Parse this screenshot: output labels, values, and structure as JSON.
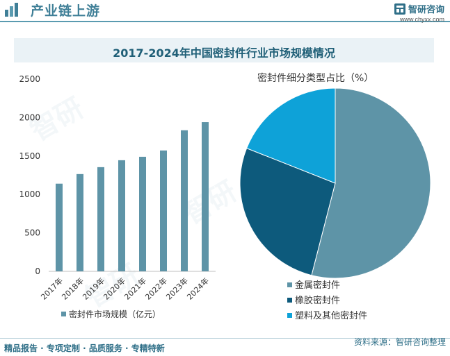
{
  "header": {
    "title": "产业链上游",
    "brand_name": "智研咨询",
    "brand_url": "www.chyxx.com"
  },
  "chart_title": "2017-2024年中国密封件行业市场规模情况",
  "colors": {
    "bar": "#5e94a7",
    "title_text": "#1f5f77",
    "accent": "#3f7f97"
  },
  "chart_data": [
    {
      "type": "bar",
      "categories": [
        "2017年",
        "2018年",
        "2019年",
        "2020年",
        "2021年",
        "2022年",
        "2023年",
        "2024年"
      ],
      "values": [
        1140,
        1265,
        1355,
        1445,
        1490,
        1572,
        1835,
        1940
      ],
      "ylim": [
        0,
        2500
      ],
      "yticks": [
        "0",
        "500",
        "1000",
        "1500",
        "2000",
        "2500"
      ],
      "legend": "密封件市场规模（亿元）",
      "xlabel": "",
      "ylabel": ""
    },
    {
      "type": "pie",
      "title": "密封件细分类型占比（%）",
      "labels": [
        "金属密封件",
        "橡胶密封件",
        "塑料及其他密封件"
      ],
      "values": [
        54,
        27,
        19
      ],
      "colors": [
        "#5e94a7",
        "#0d5a7c",
        "#0ea2d8"
      ]
    }
  ],
  "footer": {
    "left": "精品报告 · 专项定制 · 品质服务 · 专精特新",
    "right": "资料来源：智研咨询整理"
  }
}
